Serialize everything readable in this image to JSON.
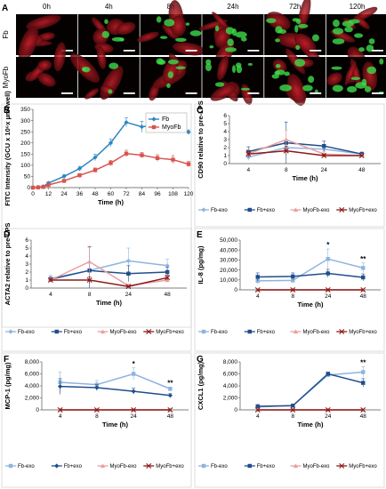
{
  "panel_A": {
    "letter": "A",
    "columns": [
      "0h",
      "4h",
      "8h",
      "24h",
      "72h",
      "120h"
    ],
    "rows": [
      "Fb",
      "MyoFb"
    ]
  },
  "chart_data": [
    {
      "id": "B",
      "letter": "B",
      "type": "line",
      "xlabel": "Time (h)",
      "ylabel": "FITC Intensity (GCU x 10⁶x µm²/well)",
      "x": [
        0,
        4,
        8,
        12,
        24,
        36,
        48,
        60,
        72,
        84,
        96,
        108,
        120
      ],
      "xticks": [
        0,
        12,
        24,
        36,
        48,
        60,
        72,
        84,
        96,
        108,
        120
      ],
      "xlim": [
        0,
        120
      ],
      "ylim": [
        0,
        350
      ],
      "yticks": [
        0,
        50,
        100,
        150,
        200,
        250,
        300,
        350
      ],
      "legend": "top-right",
      "legend_style": "box",
      "series": [
        {
          "name": "Fb",
          "color": "#2e86c1",
          "marker": "diamond",
          "values": [
            0,
            2,
            5,
            20,
            50,
            85,
            135,
            200,
            292,
            272,
            280,
            282,
            248
          ],
          "err": [
            1,
            2,
            3,
            6,
            8,
            10,
            15,
            18,
            20,
            25,
            20,
            22,
            10
          ]
        },
        {
          "name": "MyoFb",
          "color": "#d9534f",
          "marker": "square",
          "values": [
            0,
            1,
            3,
            12,
            30,
            55,
            78,
            110,
            152,
            145,
            132,
            125,
            105
          ],
          "err": [
            1,
            1,
            2,
            3,
            5,
            8,
            10,
            12,
            15,
            12,
            15,
            18,
            12
          ]
        }
      ]
    },
    {
      "id": "C",
      "letter": "C",
      "type": "line",
      "xlabel": "Time (h)",
      "ylabel": "CD90 relative to pre-LPS",
      "categories": [
        "4",
        "8",
        "24",
        "48"
      ],
      "ylim": [
        0,
        6
      ],
      "yticks": [
        0,
        1,
        2,
        3,
        4,
        5,
        6
      ],
      "legend": "bottom",
      "legend_style": "bottom",
      "series": [
        {
          "name": "Fb-exo",
          "color": "#8fb4de",
          "marker": "diamond",
          "values": [
            0.8,
            2.0,
            1.8,
            1.2
          ],
          "err": [
            0.4,
            0.8,
            0.5,
            0.3
          ]
        },
        {
          "name": "Fb+exo",
          "color": "#1f4e8c",
          "marker": "square",
          "values": [
            1.5,
            2.6,
            2.2,
            1.2
          ],
          "err": [
            0.6,
            2.6,
            0.6,
            0.2
          ]
        },
        {
          "name": "MyoFb-exo",
          "color": "#e8a0a0",
          "marker": "triangle",
          "values": [
            1.2,
            3.0,
            1.2,
            1.0
          ],
          "err": [
            0.5,
            1.2,
            0.3,
            0.2
          ]
        },
        {
          "name": "MyoFb+exo",
          "color": "#8b1a1a",
          "marker": "x",
          "values": [
            1.2,
            1.6,
            1.0,
            1.0
          ],
          "err": [
            0.4,
            0.6,
            0.2,
            0.1
          ]
        }
      ]
    },
    {
      "id": "D",
      "letter": "D",
      "type": "line",
      "xlabel": "Time (h)",
      "ylabel": "ACTA2 relative to pre-LPS",
      "categories": [
        "4",
        "8",
        "24",
        "48"
      ],
      "ylim": [
        0,
        6
      ],
      "yticks": [
        0,
        1,
        2,
        3,
        4,
        5,
        6
      ],
      "legend": "bottom",
      "legend_style": "bottom",
      "series": [
        {
          "name": "Fb-exo",
          "color": "#8fb4de",
          "marker": "diamond",
          "values": [
            1.2,
            2.2,
            3.4,
            2.8
          ],
          "err": [
            0.4,
            1.0,
            1.6,
            0.8
          ]
        },
        {
          "name": "Fb+exo",
          "color": "#1f4e8c",
          "marker": "square",
          "values": [
            1.1,
            2.2,
            1.8,
            2.0
          ],
          "err": [
            0.3,
            3.0,
            1.0,
            0.6
          ]
        },
        {
          "name": "MyoFb-exo",
          "color": "#e8a0a0",
          "marker": "triangle",
          "values": [
            1.0,
            3.3,
            0.3,
            1.0
          ],
          "err": [
            0.3,
            1.8,
            0.2,
            0.3
          ]
        },
        {
          "name": "MyoFb+exo",
          "color": "#8b1a1a",
          "marker": "x",
          "values": [
            1.0,
            1.0,
            0.2,
            1.3
          ],
          "err": [
            0.2,
            0.4,
            0.1,
            0.3
          ]
        }
      ]
    },
    {
      "id": "E",
      "letter": "E",
      "type": "line",
      "xlabel": "Time (h)",
      "ylabel": "IL-8 (pg/mg)",
      "categories": [
        "4",
        "8",
        "24",
        "48"
      ],
      "ylim": [
        0,
        50000
      ],
      "yticks": [
        0,
        10000,
        20000,
        30000,
        40000,
        50000
      ],
      "ytick_labels": [
        "0",
        "10,000",
        "20,000",
        "30,000",
        "40,000",
        "50,000"
      ],
      "legend": "bottom",
      "legend_style": "bottom",
      "annotations": [
        {
          "category": "24",
          "text": "*"
        },
        {
          "category": "48",
          "text": "**"
        }
      ],
      "series": [
        {
          "name": "Fb-exo",
          "color": "#8fb4de",
          "marker": "square",
          "values": [
            9000,
            9500,
            31000,
            22000
          ],
          "err": [
            3000,
            2500,
            10000,
            5000
          ]
        },
        {
          "name": "Fb+exo",
          "color": "#1f4e8c",
          "marker": "square",
          "values": [
            13000,
            13500,
            16500,
            12500
          ],
          "err": [
            4000,
            3500,
            4000,
            3500
          ]
        },
        {
          "name": "MyoFb-exo",
          "color": "#e8a0a0",
          "marker": "triangle",
          "values": [
            0,
            0,
            0,
            0
          ],
          "err": [
            0,
            0,
            0,
            0
          ]
        },
        {
          "name": "MyoFb+exo",
          "color": "#8b1a1a",
          "marker": "x",
          "values": [
            0,
            0,
            0,
            0
          ],
          "err": [
            0,
            0,
            0,
            0
          ]
        }
      ]
    },
    {
      "id": "F",
      "letter": "F",
      "type": "line",
      "xlabel": "Time (h)",
      "ylabel": "MCP-1 (pg/mg)",
      "categories": [
        "4",
        "8",
        "24",
        "48"
      ],
      "ylim": [
        0,
        8000
      ],
      "yticks": [
        0,
        2000,
        4000,
        6000,
        8000
      ],
      "ytick_labels": [
        "0",
        "2,000",
        "4,000",
        "6,000",
        "8,000"
      ],
      "legend": "bottom",
      "legend_style": "bottom",
      "annotations": [
        {
          "category": "24",
          "text": "*"
        },
        {
          "category": "48",
          "text": "**"
        }
      ],
      "series": [
        {
          "name": "Fb-exo",
          "color": "#8fb4de",
          "marker": "square",
          "values": [
            4600,
            4200,
            6000,
            3500
          ],
          "err": [
            1700,
            700,
            1000,
            300
          ]
        },
        {
          "name": "Fb+exo",
          "color": "#1f4e8c",
          "marker": "diamond",
          "values": [
            3900,
            3700,
            3100,
            2400
          ],
          "err": [
            1300,
            500,
            500,
            300
          ]
        },
        {
          "name": "MyoFb-exo",
          "color": "#e8a0a0",
          "marker": "triangle",
          "values": [
            0,
            0,
            0,
            0
          ],
          "err": [
            0,
            0,
            0,
            0
          ]
        },
        {
          "name": "MyoFb+exo",
          "color": "#8b1a1a",
          "marker": "x",
          "values": [
            0,
            0,
            0,
            0
          ],
          "err": [
            0,
            0,
            0,
            0
          ]
        }
      ]
    },
    {
      "id": "G",
      "letter": "G",
      "type": "line",
      "xlabel": "Time (h)",
      "ylabel": "CXCL1 (pg/mg)",
      "categories": [
        "4",
        "8",
        "24",
        "48"
      ],
      "ylim": [
        0,
        8000
      ],
      "yticks": [
        0,
        2000,
        4000,
        6000,
        8000
      ],
      "ytick_labels": [
        "0",
        "2,000",
        "4,000",
        "6,000",
        "8,000"
      ],
      "legend": "bottom",
      "legend_style": "bottom",
      "annotations": [
        {
          "category": "48",
          "text": "**"
        }
      ],
      "series": [
        {
          "name": "Fb-exo",
          "color": "#8fb4de",
          "marker": "square",
          "values": [
            500,
            700,
            5800,
            6300
          ],
          "err": [
            200,
            200,
            300,
            900
          ]
        },
        {
          "name": "Fb+exo",
          "color": "#1f4e8c",
          "marker": "square",
          "values": [
            600,
            700,
            6000,
            4500
          ],
          "err": [
            250,
            250,
            300,
            700
          ]
        },
        {
          "name": "MyoFb-exo",
          "color": "#e8a0a0",
          "marker": "triangle",
          "values": [
            0,
            0,
            0,
            0
          ],
          "err": [
            0,
            0,
            0,
            0
          ]
        },
        {
          "name": "MyoFb+exo",
          "color": "#8b1a1a",
          "marker": "x",
          "values": [
            0,
            0,
            0,
            0
          ],
          "err": [
            0,
            0,
            0,
            0
          ]
        }
      ]
    }
  ]
}
